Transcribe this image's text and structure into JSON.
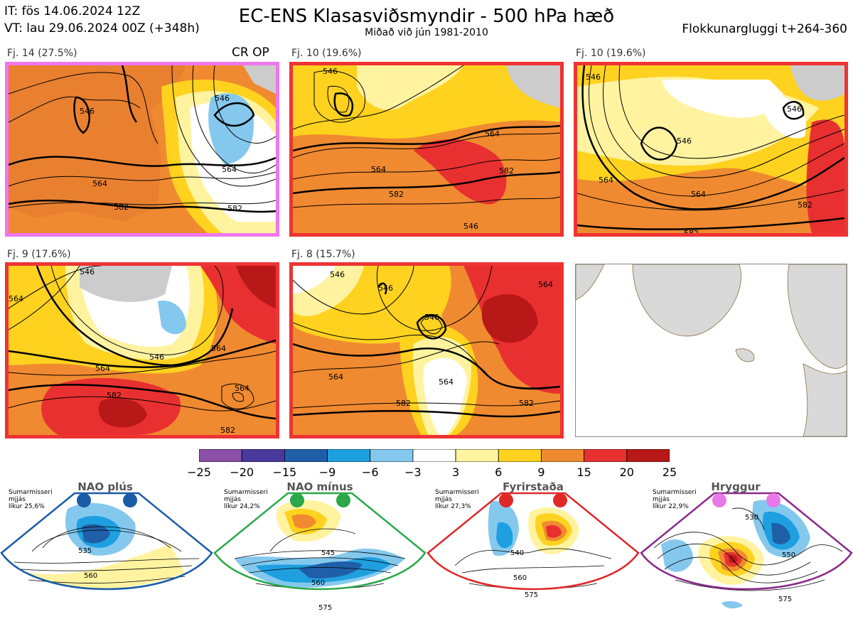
{
  "header": {
    "it": "IT: fös 14.06.2024 12Z",
    "vt": "VT: lau 29.06.2024 00Z  (+348h)",
    "title": "EC-ENS Klasasviðsmyndir - 500 hPa hæð",
    "subtitle": "Miðað við jún 1981-2010",
    "window": "Flokkunargluggi t+264-360"
  },
  "panels": [
    {
      "label": "Fj. 14 (27.5%)",
      "border": "#ee77ee",
      "tag": "CR OP",
      "contours": [
        "564",
        "546",
        "564",
        "564",
        "582",
        "582",
        "546"
      ]
    },
    {
      "label": "Fj. 10 (19.6%)",
      "border": "#ee3333",
      "contours": [
        "546",
        "564",
        "564",
        "582",
        "582",
        "546"
      ]
    },
    {
      "label": "Fj. 10 (19.6%)",
      "border": "#ee3333",
      "contours": [
        "546",
        "546",
        "564",
        "546",
        "564",
        "582",
        "582",
        "546"
      ]
    },
    {
      "label": "Fj. 9 (17.6%)",
      "border": "#ee3333",
      "contours": [
        "546",
        "564",
        "546",
        "564",
        "564",
        "582",
        "582",
        "564"
      ]
    },
    {
      "label": "Fj. 8 (15.7%)",
      "border": "#ee3333",
      "contours": [
        "546",
        "546",
        "546",
        "564",
        "564",
        "582",
        "582",
        "564"
      ]
    }
  ],
  "colorbar": {
    "ticks": [
      "−25",
      "−20",
      "−15",
      "−9",
      "−6",
      "−3",
      "3",
      "6",
      "9",
      "15",
      "20",
      "25"
    ],
    "colors": [
      "#8a4fa6",
      "#4a3a9e",
      "#1f5fa8",
      "#1ea0e0",
      "#85c8ee",
      "#ffffff",
      "#fff3a0",
      "#ffd21f",
      "#f08a30",
      "#e83030",
      "#b81818"
    ]
  },
  "regimes": [
    {
      "title": "NAO plús",
      "text": "Sumarmisseri\nmjjás\nlíkur 25,6%",
      "color": "#1a5ca8",
      "labels": [
        "535",
        "560"
      ]
    },
    {
      "title": "NAO mínus",
      "text": "Sumarmisseri\nmjjás\nlíkur 24,2%",
      "color": "#2aa84a",
      "labels": [
        "545",
        "560",
        "575"
      ]
    },
    {
      "title": "Fyrirstaða",
      "text": "Sumarmisseri\nmjjás\nlíkur 27,3%",
      "color": "#e02828",
      "labels": [
        "540",
        "560",
        "575"
      ]
    },
    {
      "title": "Hryggur",
      "text": "Sumarmisseri\nmjjás\nlíkur 22,9%",
      "color": "#e878e8",
      "labels": [
        "530",
        "550",
        "575"
      ]
    }
  ]
}
